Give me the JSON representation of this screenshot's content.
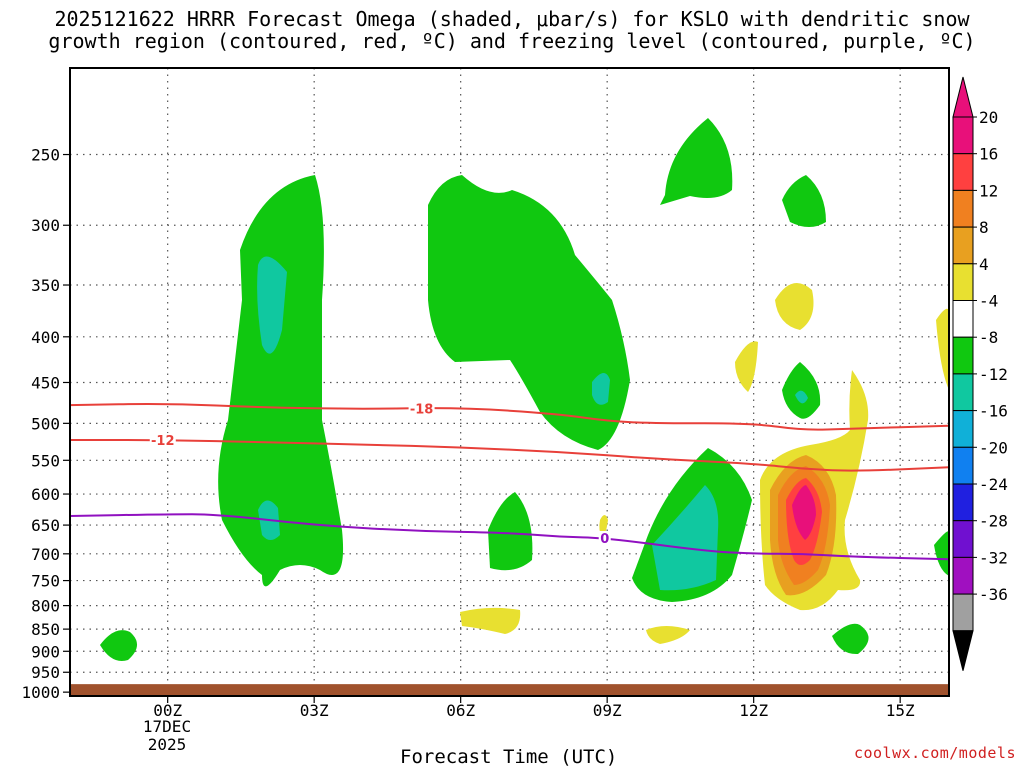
{
  "chart_data": {
    "type": "contour",
    "title_line1": "2025121622 HRRR Forecast Omega (shaded, μbar/s) for KSLO with dendritic snow",
    "title_line2": "growth region (contoured, red, ºC) and freezing level (contoured, purple, ºC)",
    "xlabel": "Forecast Time (UTC)",
    "x_ticks": [
      {
        "hour": 0,
        "label": "00Z"
      },
      {
        "hour": 3,
        "label": "03Z"
      },
      {
        "hour": 6,
        "label": "06Z"
      },
      {
        "hour": 9,
        "label": "09Z"
      },
      {
        "hour": 12,
        "label": "12Z"
      },
      {
        "hour": 15,
        "label": "15Z"
      }
    ],
    "date_label": "17DEC",
    "year_label": "2025",
    "x_range_hours": [
      -2,
      16
    ],
    "y_ticks": [
      250,
      300,
      350,
      400,
      450,
      500,
      550,
      600,
      650,
      700,
      750,
      800,
      850,
      900,
      950,
      1000
    ],
    "colorbar": {
      "labels": [
        "20",
        "16",
        "12",
        "8",
        "4",
        "-4",
        "-8",
        "-12",
        "-16",
        "-20",
        "-24",
        "-28",
        "-32",
        "-36"
      ],
      "colors": [
        "#e8107a",
        "#ff4040",
        "#f08020",
        "#e8a020",
        "#e8e030",
        "#ffffff",
        "#10c810",
        "#10c8a0",
        "#10b0d8",
        "#1080f0",
        "#2020e0",
        "#7010d0",
        "#a010c0",
        "#a0a0a0"
      ],
      "top_arrow_color": "#e8107a",
      "bottom_arrow_color": "#000000"
    },
    "contour_labels": {
      "dgz_upper": "-18",
      "dgz_lower": "-12",
      "freezing": "0"
    },
    "dgz_upper_hpa": [
      [
        -2,
        477
      ],
      [
        0,
        475
      ],
      [
        2,
        480
      ],
      [
        4,
        482
      ],
      [
        6,
        480
      ],
      [
        8,
        488
      ],
      [
        9,
        497
      ],
      [
        10,
        500
      ],
      [
        12,
        500
      ],
      [
        13,
        509
      ],
      [
        14,
        507
      ],
      [
        16,
        503
      ]
    ],
    "dgz_lower_hpa": [
      [
        -2,
        522
      ],
      [
        0,
        522
      ],
      [
        2,
        525
      ],
      [
        4,
        528
      ],
      [
        6,
        532
      ],
      [
        8,
        538
      ],
      [
        10,
        548
      ],
      [
        12,
        555
      ],
      [
        13,
        562
      ],
      [
        14,
        566
      ],
      [
        16,
        560
      ]
    ],
    "freezing_hpa": [
      [
        -2,
        635
      ],
      [
        0,
        632
      ],
      [
        1,
        632
      ],
      [
        3,
        650
      ],
      [
        5,
        660
      ],
      [
        7,
        663
      ],
      [
        8,
        670
      ],
      [
        9,
        672
      ],
      [
        11,
        695
      ],
      [
        12,
        700
      ],
      [
        13,
        700
      ],
      [
        14,
        705
      ],
      [
        16,
        710
      ]
    ],
    "ground_hpa": 1000,
    "credit": "coolwx.com/models"
  }
}
